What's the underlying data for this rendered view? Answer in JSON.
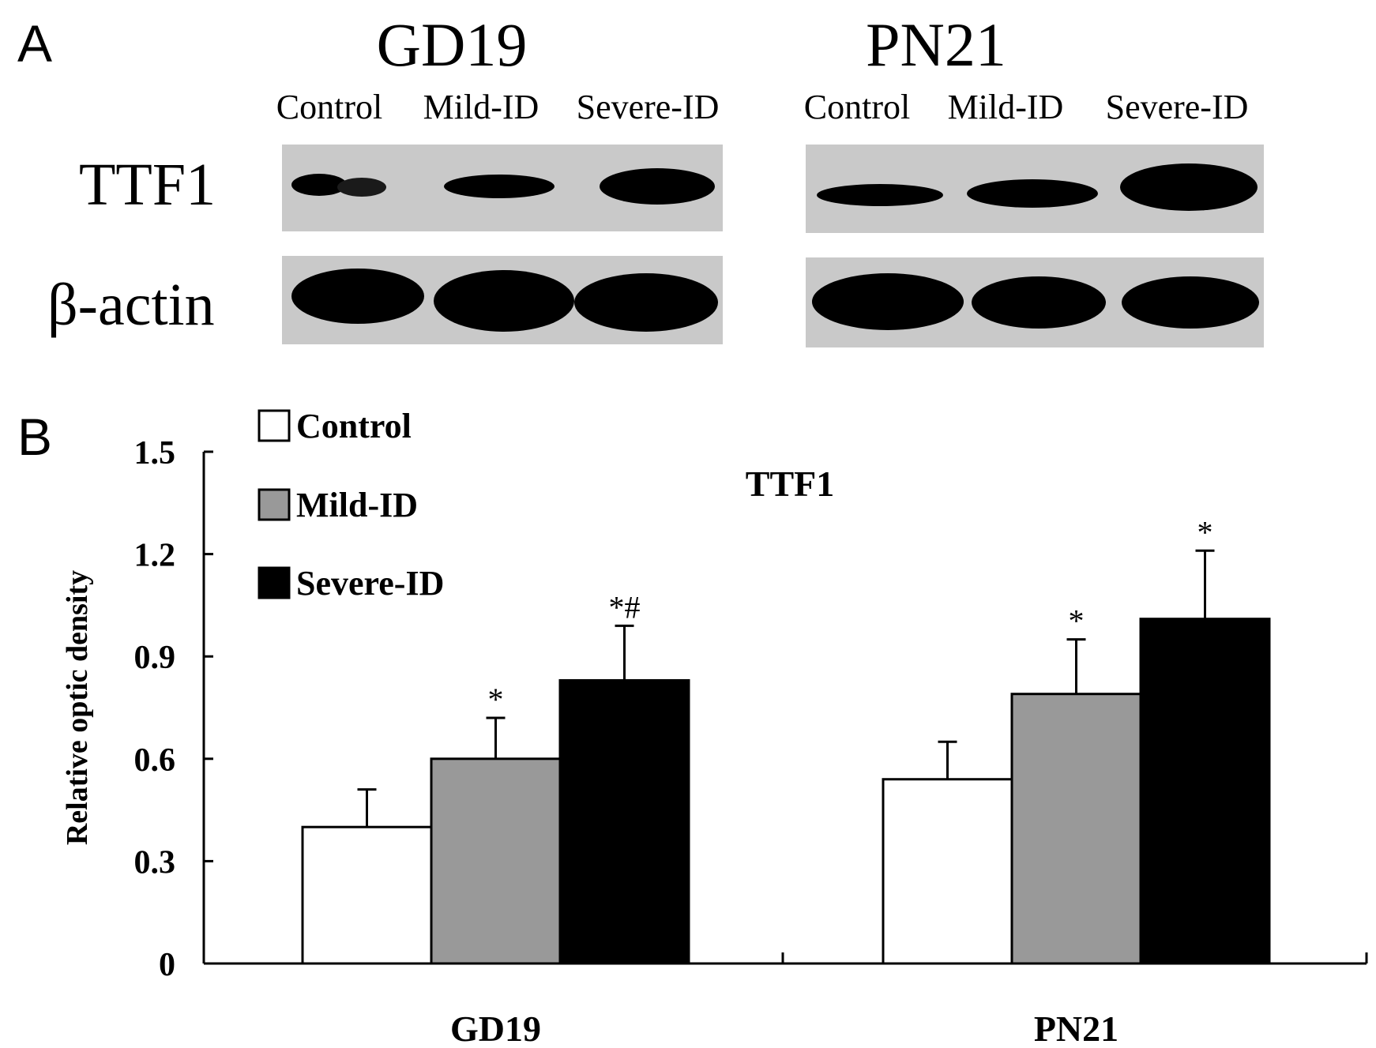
{
  "panel_a": {
    "letter": "A",
    "groups": [
      {
        "title": "GD19",
        "lanes": [
          "Control",
          "Mild-ID",
          "Severe-ID"
        ]
      },
      {
        "title": "PN21",
        "lanes": [
          "Control",
          "Mild-ID",
          "Severe-ID"
        ]
      }
    ],
    "rows": [
      "TTF1",
      "β-actin"
    ]
  },
  "panel_b": {
    "letter": "B"
  },
  "chart_data": {
    "type": "bar",
    "title": "TTF1",
    "ylabel": "Relative optic density",
    "xlabel": "",
    "categories": [
      "GD19",
      "PN21"
    ],
    "ylim": [
      0,
      1.5
    ],
    "yticks": [
      "0",
      "0.3",
      "0.6",
      "0.9",
      "1.2",
      "1.5"
    ],
    "legend_position": "top-left",
    "series": [
      {
        "name": "Control",
        "color": "#ffffff",
        "values": [
          0.4,
          0.54
        ],
        "errors": [
          0.11,
          0.11
        ],
        "annotations": [
          "",
          ""
        ]
      },
      {
        "name": "Mild-ID",
        "color": "#999999",
        "values": [
          0.6,
          0.79
        ],
        "errors": [
          0.12,
          0.16
        ],
        "annotations": [
          "*",
          "*"
        ]
      },
      {
        "name": "Severe-ID",
        "color": "#000000",
        "values": [
          0.83,
          1.01
        ],
        "errors": [
          0.16,
          0.2
        ],
        "annotations": [
          "*#",
          "*"
        ]
      }
    ]
  }
}
